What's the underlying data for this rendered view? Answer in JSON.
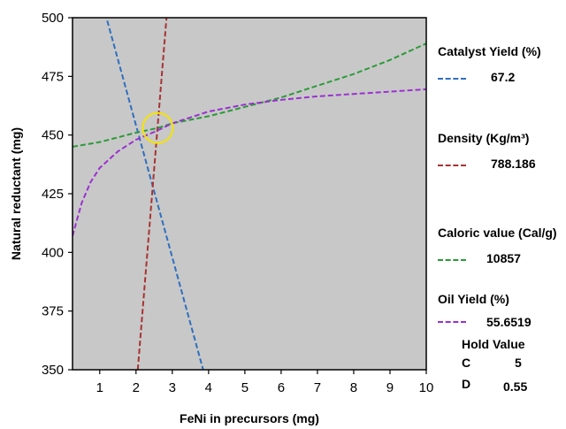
{
  "chart_data": {
    "type": "line",
    "xlabel": "FeNi in precursors (mg)",
    "ylabel": "Natural reductant (mg)",
    "xlim": [
      0.25,
      10
    ],
    "ylim": [
      350,
      500
    ],
    "xticks": [
      1,
      2,
      3,
      4,
      5,
      6,
      7,
      8,
      9,
      10
    ],
    "yticks": [
      350,
      375,
      400,
      425,
      450,
      475,
      500
    ],
    "background": "#c8c8c8",
    "grid": false,
    "series": [
      {
        "name": "Catalyst Yield (%)",
        "value": "67.2",
        "color": "#2f6fbf",
        "x": [
          1.15,
          3.85
        ],
        "y": [
          502,
          350
        ]
      },
      {
        "name": "Density (Kg/m³)",
        "value": "788.186",
        "color": "#a83232",
        "x": [
          2.05,
          2.85
        ],
        "y": [
          350,
          502
        ]
      },
      {
        "name": "Caloric value (Cal/g)",
        "value": "10857",
        "color": "#2c9a3a",
        "x": [
          0.25,
          1,
          2,
          2.6,
          3,
          4,
          5,
          6,
          7,
          8,
          9,
          10
        ],
        "y": [
          445,
          447,
          451,
          453,
          455,
          458,
          462,
          466,
          471,
          476,
          482,
          489
        ]
      },
      {
        "name": "Oil Yield (%)",
        "value": "55.6519",
        "color": "#9b30d0",
        "x": [
          0.25,
          0.5,
          0.75,
          1,
          1.5,
          2,
          2.6,
          3,
          4,
          5,
          6,
          7,
          8,
          9,
          10
        ],
        "y": [
          407,
          421,
          430,
          436,
          443,
          448,
          452,
          455,
          460,
          463,
          465,
          466.5,
          467.5,
          468.5,
          469.5
        ]
      }
    ],
    "highlight": {
      "x": 2.6,
      "y": 453,
      "color": "#f5e400"
    },
    "hold_values": {
      "title": "Hold Value",
      "items": [
        {
          "label": "C",
          "value": "5"
        },
        {
          "label": "D",
          "value": "0.55"
        }
      ]
    }
  }
}
